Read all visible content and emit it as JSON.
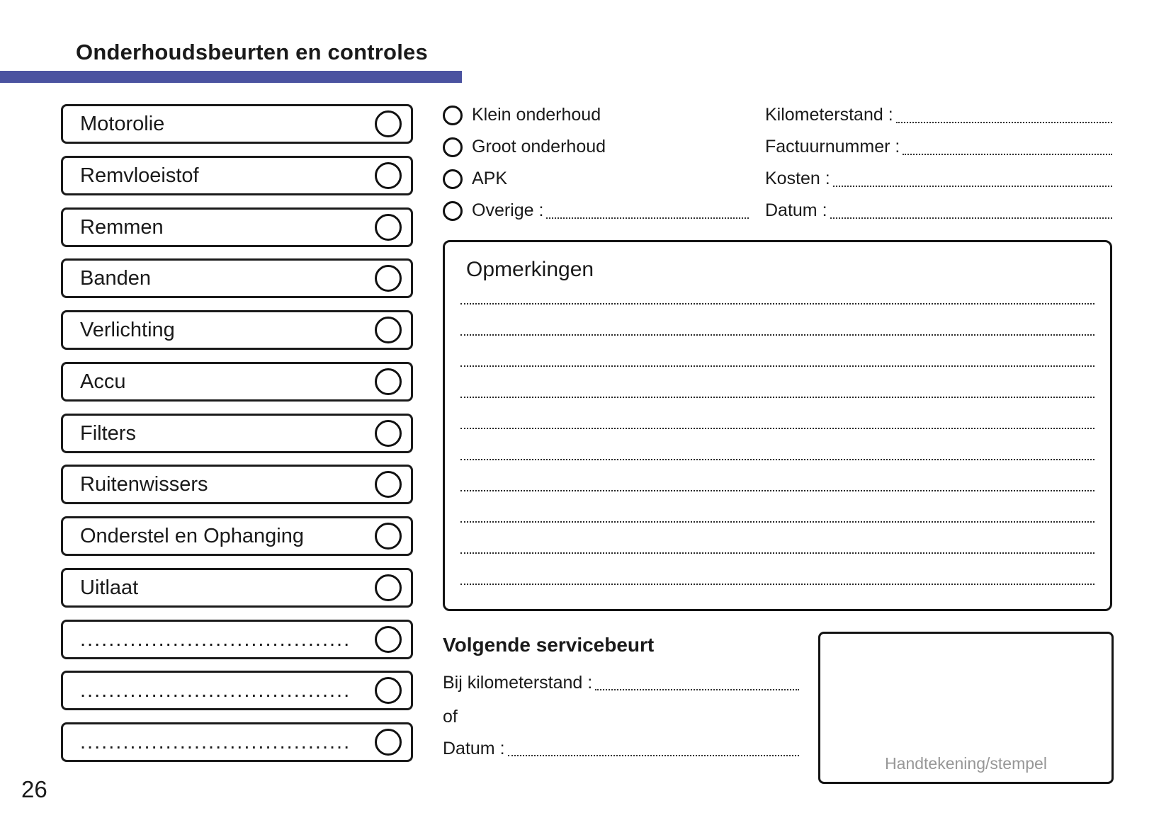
{
  "page": {
    "title": "Onderhoudsbeurten en controles",
    "page_number": "26",
    "accent_color": "#4a52a0"
  },
  "checklist": {
    "items": [
      {
        "label": "Motorolie",
        "dots": false
      },
      {
        "label": "Remvloeistof",
        "dots": false
      },
      {
        "label": "Remmen",
        "dots": false
      },
      {
        "label": "Banden",
        "dots": false
      },
      {
        "label": "Verlichting",
        "dots": false
      },
      {
        "label": "Accu",
        "dots": false
      },
      {
        "label": "Filters",
        "dots": false
      },
      {
        "label": "Ruitenwissers",
        "dots": false
      },
      {
        "label": "Onderstel en Ophanging",
        "dots": false
      },
      {
        "label": "Uitlaat",
        "dots": false
      },
      {
        "label": "......................................",
        "dots": true
      },
      {
        "label": "......................................",
        "dots": true
      },
      {
        "label": "......................................",
        "dots": true
      }
    ]
  },
  "service_type": {
    "options": [
      {
        "label": "Klein onderhoud"
      },
      {
        "label": "Groot onderhoud"
      },
      {
        "label": "APK"
      },
      {
        "label": "Overige :"
      }
    ]
  },
  "record_fields": {
    "items": [
      {
        "label": "Kilometerstand :"
      },
      {
        "label": "Factuurnummer :"
      },
      {
        "label": "Kosten :"
      },
      {
        "label": "Datum :"
      }
    ]
  },
  "remarks": {
    "title": "Opmerkingen",
    "ruled_lines": 10
  },
  "next_service": {
    "title": "Volgende servicebeurt",
    "km_label": "Bij kilometerstand :",
    "or_label": "of",
    "date_label": "Datum :"
  },
  "signature": {
    "label": "Handtekening/stempel"
  }
}
